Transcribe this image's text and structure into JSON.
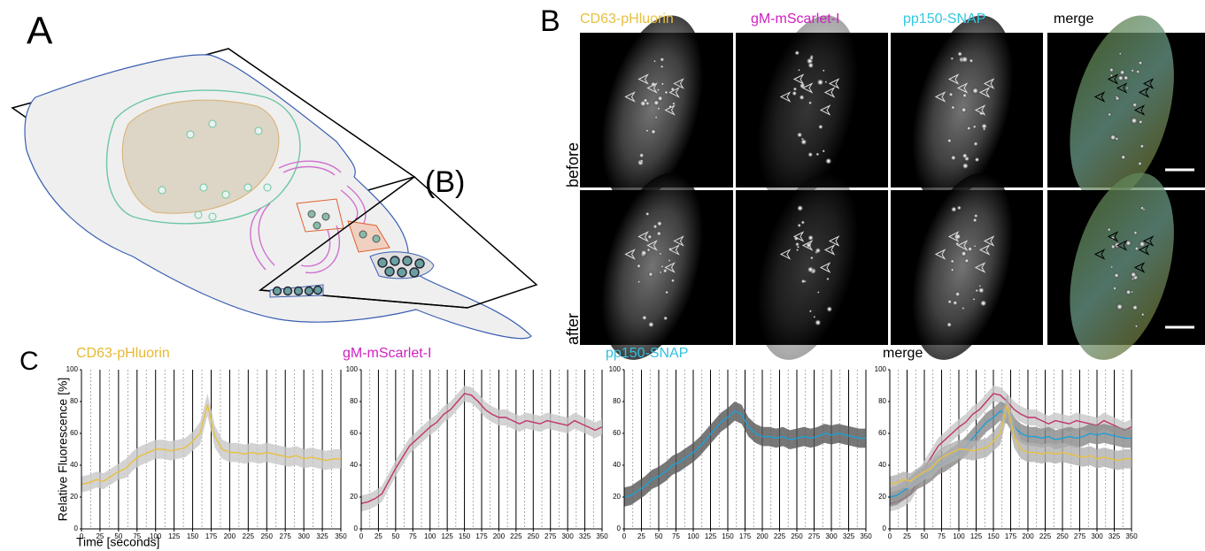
{
  "figure": {
    "panel_a": {
      "label": "A",
      "plane_label": "(B)"
    },
    "panel_b": {
      "label": "B",
      "channels": [
        "CD63-pHluorin",
        "gM-mScarlet-I",
        "pp150-SNAP",
        "merge"
      ],
      "rows": [
        "before",
        "after"
      ]
    },
    "panel_c": {
      "label": "C"
    }
  },
  "chart_data": [
    {
      "type": "line",
      "title": "CD63-pHluorin",
      "title_color": "#e8b830",
      "ylabel": "Relative Fluorescence [%]",
      "xlabel": "Time [seconds]",
      "x": [
        0,
        10,
        20,
        30,
        40,
        50,
        60,
        70,
        80,
        90,
        100,
        110,
        120,
        130,
        140,
        150,
        160,
        170,
        180,
        190,
        200,
        210,
        220,
        230,
        240,
        250,
        260,
        270,
        280,
        290,
        300,
        310,
        320,
        330,
        340,
        350
      ],
      "xlim": [
        0,
        350
      ],
      "xticks": [
        0,
        25,
        50,
        75,
        100,
        125,
        150,
        175,
        200,
        225,
        250,
        275,
        300,
        325,
        350
      ],
      "ylim": [
        0,
        100
      ],
      "yticks": [
        0,
        20,
        40,
        60,
        80,
        100
      ],
      "series": [
        {
          "color": "#e8c040",
          "band_color": "#c8c8c8",
          "values": [
            28,
            29,
            31,
            30,
            33,
            36,
            38,
            43,
            46,
            48,
            50,
            50,
            49,
            50,
            51,
            55,
            60,
            78,
            58,
            50,
            48,
            48,
            47,
            48,
            47,
            48,
            47,
            46,
            45,
            46,
            44,
            45,
            44,
            43,
            44,
            44
          ],
          "errors": [
            5,
            5,
            5,
            5,
            5,
            5,
            6,
            6,
            6,
            6,
            6,
            6,
            6,
            6,
            6,
            6,
            7,
            7,
            7,
            6,
            6,
            6,
            6,
            6,
            6,
            6,
            6,
            6,
            6,
            6,
            6,
            6,
            6,
            6,
            6,
            6
          ]
        }
      ]
    },
    {
      "type": "line",
      "title": "gM-mScarlet-I",
      "title_color": "#d020c0",
      "x": [
        0,
        10,
        20,
        30,
        40,
        50,
        60,
        70,
        80,
        90,
        100,
        110,
        120,
        130,
        140,
        150,
        160,
        170,
        180,
        190,
        200,
        210,
        220,
        230,
        240,
        250,
        260,
        270,
        280,
        290,
        300,
        310,
        320,
        330,
        340,
        350
      ],
      "xlim": [
        0,
        350
      ],
      "xticks": [
        0,
        25,
        50,
        75,
        100,
        125,
        150,
        175,
        200,
        225,
        250,
        275,
        300,
        325,
        350
      ],
      "ylim": [
        0,
        100
      ],
      "yticks": [
        0,
        20,
        40,
        60,
        80,
        100
      ],
      "series": [
        {
          "color": "#c0336a",
          "band_color": "#c8c8c8",
          "values": [
            16,
            17,
            19,
            22,
            30,
            38,
            45,
            52,
            56,
            60,
            64,
            67,
            72,
            75,
            80,
            85,
            84,
            80,
            75,
            72,
            70,
            70,
            68,
            66,
            68,
            67,
            66,
            68,
            67,
            66,
            65,
            68,
            66,
            64,
            62,
            64
          ],
          "errors": [
            5,
            5,
            5,
            5,
            5,
            5,
            5,
            5,
            5,
            5,
            5,
            5,
            5,
            5,
            5,
            5,
            5,
            5,
            5,
            5,
            5,
            5,
            5,
            5,
            5,
            5,
            5,
            5,
            5,
            5,
            5,
            5,
            5,
            5,
            5,
            5
          ]
        }
      ]
    },
    {
      "type": "line",
      "title": "pp150-SNAP",
      "title_color": "#30c0e0",
      "x": [
        0,
        10,
        20,
        30,
        40,
        50,
        60,
        70,
        80,
        90,
        100,
        110,
        120,
        130,
        140,
        150,
        160,
        170,
        180,
        190,
        200,
        210,
        220,
        230,
        240,
        250,
        260,
        270,
        280,
        290,
        300,
        310,
        320,
        330,
        340,
        350
      ],
      "xlim": [
        0,
        350
      ],
      "xticks": [
        0,
        25,
        50,
        75,
        100,
        125,
        150,
        175,
        200,
        225,
        250,
        275,
        300,
        325,
        350
      ],
      "ylim": [
        0,
        100
      ],
      "yticks": [
        0,
        20,
        40,
        60,
        80,
        100
      ],
      "series": [
        {
          "color": "#1aa0d8",
          "band_color": "#555555",
          "values": [
            20,
            21,
            24,
            27,
            31,
            33,
            36,
            40,
            42,
            45,
            48,
            52,
            57,
            62,
            67,
            70,
            74,
            72,
            64,
            60,
            58,
            58,
            57,
            58,
            56,
            57,
            58,
            57,
            58,
            60,
            59,
            60,
            59,
            58,
            57,
            57
          ],
          "errors": [
            6,
            6,
            6,
            6,
            6,
            6,
            6,
            6,
            6,
            6,
            6,
            6,
            6,
            6,
            6,
            6,
            6,
            6,
            6,
            6,
            6,
            6,
            6,
            6,
            6,
            6,
            6,
            6,
            6,
            6,
            6,
            6,
            6,
            6,
            6,
            6
          ]
        }
      ]
    },
    {
      "type": "line",
      "title": "merge",
      "title_color": "#000000",
      "x": [
        0,
        10,
        20,
        30,
        40,
        50,
        60,
        70,
        80,
        90,
        100,
        110,
        120,
        130,
        140,
        150,
        160,
        170,
        180,
        190,
        200,
        210,
        220,
        230,
        240,
        250,
        260,
        270,
        280,
        290,
        300,
        310,
        320,
        330,
        340,
        350
      ],
      "xlim": [
        0,
        350
      ],
      "xticks": [
        0,
        25,
        50,
        75,
        100,
        125,
        150,
        175,
        200,
        225,
        250,
        275,
        300,
        325,
        350
      ],
      "ylim": [
        0,
        100
      ],
      "yticks": [
        0,
        20,
        40,
        60,
        80,
        100
      ],
      "series": [
        {
          "color": "#c0336a",
          "band_color": "#c8c8c8",
          "values": [
            16,
            17,
            19,
            22,
            30,
            38,
            45,
            52,
            56,
            60,
            64,
            67,
            72,
            75,
            80,
            85,
            84,
            80,
            75,
            72,
            70,
            70,
            68,
            66,
            68,
            67,
            66,
            68,
            67,
            66,
            65,
            68,
            66,
            64,
            62,
            64
          ],
          "errors": [
            5,
            5,
            5,
            5,
            5,
            5,
            5,
            5,
            5,
            5,
            5,
            5,
            5,
            5,
            5,
            5,
            5,
            5,
            5,
            5,
            5,
            5,
            5,
            5,
            5,
            5,
            5,
            5,
            5,
            5,
            5,
            5,
            5,
            5,
            5,
            5
          ]
        },
        {
          "color": "#1aa0d8",
          "band_color": "#888888",
          "values": [
            20,
            21,
            24,
            27,
            31,
            33,
            36,
            40,
            42,
            45,
            48,
            52,
            57,
            62,
            67,
            70,
            74,
            72,
            64,
            60,
            58,
            58,
            57,
            58,
            56,
            57,
            58,
            57,
            58,
            60,
            59,
            60,
            59,
            58,
            57,
            57
          ],
          "errors": [
            6,
            6,
            6,
            6,
            6,
            6,
            6,
            6,
            6,
            6,
            6,
            6,
            6,
            6,
            6,
            6,
            6,
            6,
            6,
            6,
            6,
            6,
            6,
            6,
            6,
            6,
            6,
            6,
            6,
            6,
            6,
            6,
            6,
            6,
            6,
            6
          ]
        },
        {
          "color": "#e8c040",
          "band_color": "#b0b0b0",
          "values": [
            28,
            29,
            31,
            30,
            33,
            36,
            38,
            43,
            46,
            48,
            50,
            50,
            49,
            50,
            51,
            55,
            60,
            78,
            58,
            50,
            48,
            48,
            47,
            48,
            47,
            48,
            47,
            46,
            45,
            46,
            44,
            45,
            44,
            43,
            44,
            44
          ],
          "errors": [
            5,
            5,
            5,
            5,
            5,
            5,
            6,
            6,
            6,
            6,
            6,
            6,
            6,
            6,
            6,
            6,
            7,
            7,
            7,
            6,
            6,
            6,
            6,
            6,
            6,
            6,
            6,
            6,
            6,
            6,
            6,
            6,
            6,
            6,
            6,
            6
          ]
        }
      ]
    }
  ]
}
